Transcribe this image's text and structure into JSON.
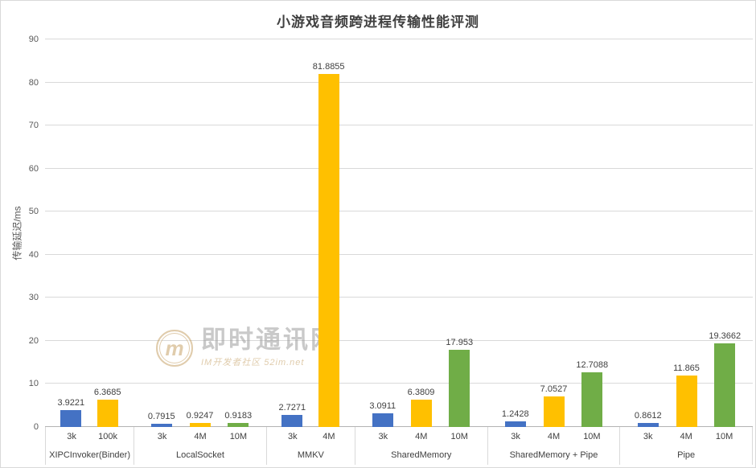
{
  "watermark": {
    "logo_letter": "m",
    "brand": "即时通讯网",
    "sub": "IM开发者社区 52im.net"
  },
  "chart_data": {
    "type": "bar",
    "title": "小游戏音频跨进程传输性能评测",
    "xlabel": "",
    "ylabel": "传输延迟/ms",
    "ylim": [
      0,
      90
    ],
    "ytick_step": 10,
    "grid": "horizontal",
    "legend": "none",
    "series_colors": {
      "blue": "#4472c4",
      "yellow": "#ffc000",
      "green": "#70ad47"
    },
    "groups": [
      {
        "label": "XIPCInvoker(Binder)",
        "bars": [
          {
            "label": "3k",
            "value": 3.9221,
            "color": "#4472c4"
          },
          {
            "label": "100k",
            "value": 6.3685,
            "color": "#ffc000"
          }
        ]
      },
      {
        "label": "LocalSocket",
        "bars": [
          {
            "label": "3k",
            "value": 0.7915,
            "color": "#4472c4"
          },
          {
            "label": "4M",
            "value": 0.9247,
            "color": "#ffc000"
          },
          {
            "label": "10M",
            "value": 0.9183,
            "color": "#70ad47"
          }
        ]
      },
      {
        "label": "MMKV",
        "bars": [
          {
            "label": "3k",
            "value": 2.7271,
            "color": "#4472c4"
          },
          {
            "label": "4M",
            "value": 81.8855,
            "color": "#ffc000"
          }
        ]
      },
      {
        "label": "SharedMemory",
        "bars": [
          {
            "label": "3k",
            "value": 3.0911,
            "color": "#4472c4"
          },
          {
            "label": "4M",
            "value": 6.3809,
            "color": "#ffc000"
          },
          {
            "label": "10M",
            "value": 17.953,
            "color": "#70ad47"
          }
        ]
      },
      {
        "label": "SharedMemory + Pipe",
        "bars": [
          {
            "label": "3k",
            "value": 1.2428,
            "color": "#4472c4"
          },
          {
            "label": "4M",
            "value": 7.0527,
            "color": "#ffc000"
          },
          {
            "label": "10M",
            "value": 12.7088,
            "color": "#70ad47"
          }
        ]
      },
      {
        "label": "Pipe",
        "bars": [
          {
            "label": "3k",
            "value": 0.8612,
            "color": "#4472c4"
          },
          {
            "label": "4M",
            "value": 11.865,
            "color": "#ffc000"
          },
          {
            "label": "10M",
            "value": 19.3662,
            "color": "#70ad47"
          }
        ]
      }
    ]
  }
}
